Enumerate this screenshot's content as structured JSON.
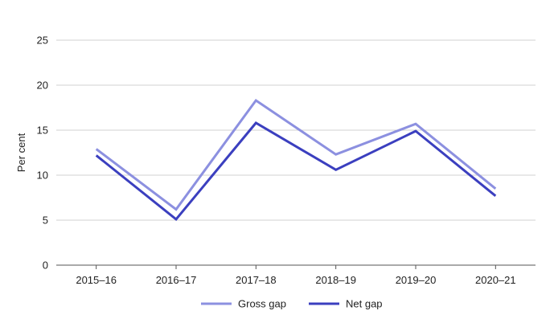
{
  "chart_data": {
    "type": "line",
    "categories": [
      "2015–16",
      "2016–17",
      "2017–18",
      "2018–19",
      "2019–20",
      "2020–21"
    ],
    "series": [
      {
        "name": "Gross gap",
        "values": [
          12.9,
          6.2,
          18.3,
          12.3,
          15.7,
          8.5
        ],
        "color": "#8c90e0"
      },
      {
        "name": "Net gap",
        "values": [
          12.2,
          5.1,
          15.8,
          10.6,
          14.9,
          7.7
        ],
        "color": "#3b3fbf"
      }
    ],
    "title": "",
    "xlabel": "",
    "ylabel": "Per cent",
    "ylim": [
      0,
      25
    ],
    "yticks": [
      0,
      5,
      10,
      15,
      20,
      25
    ],
    "grid": true,
    "legend": "bottom-center"
  }
}
